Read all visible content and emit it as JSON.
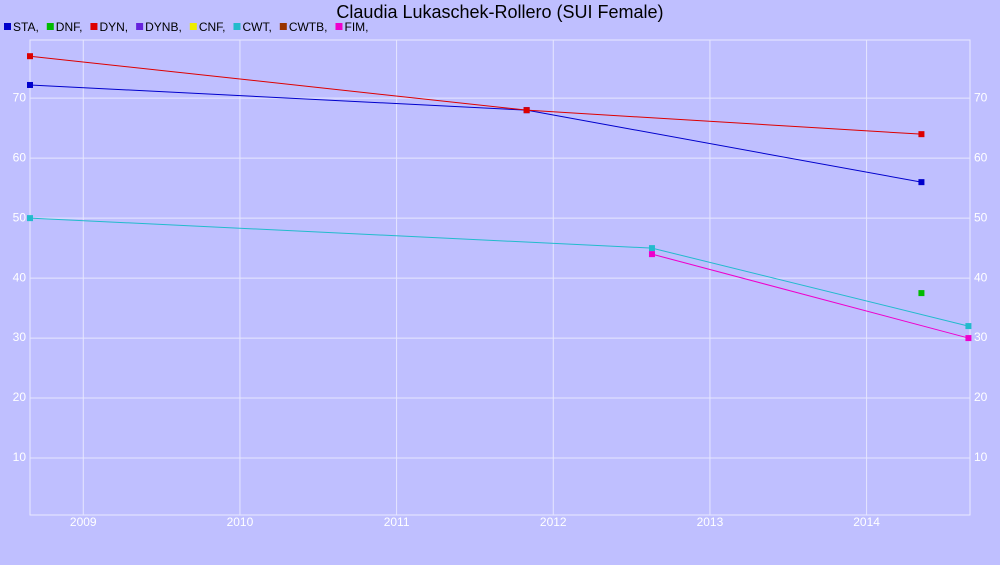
{
  "chart_data": {
    "type": "line",
    "title": "Claudia Lukaschek-Rollero (SUI Female)",
    "xlim": [
      2008.66,
      2014.66
    ],
    "xticks": [
      2009,
      2010,
      2011,
      2012,
      2013,
      2014
    ],
    "ylim": [
      0.5,
      79.7
    ],
    "yticks": [
      10,
      20,
      30,
      40,
      50,
      60,
      70
    ],
    "grid": true,
    "series": [
      {
        "name": "STA,",
        "color": "#0000cc",
        "x": [
          2008.66,
          2011.83,
          2014.35
        ],
        "values": [
          72.2,
          68,
          56
        ]
      },
      {
        "name": "DNF,",
        "color": "#00bb00",
        "x": [
          2014.35
        ],
        "values": [
          37.5
        ]
      },
      {
        "name": "DYN,",
        "color": "#dd0000",
        "x": [
          2008.66,
          2011.83,
          2014.35
        ],
        "values": [
          77,
          68,
          64
        ]
      },
      {
        "name": "DYNB,",
        "color": "#6622dd",
        "x": [],
        "values": []
      },
      {
        "name": "CNF,",
        "color": "#eeee00",
        "x": [],
        "values": []
      },
      {
        "name": "CWT,",
        "color": "#22bbcc",
        "x": [
          2008.66,
          2012.63,
          2014.65
        ],
        "values": [
          50,
          45,
          32
        ]
      },
      {
        "name": "CWTB,",
        "color": "#993300",
        "x": [],
        "values": []
      },
      {
        "name": "FIM,",
        "color": "#ee00cc",
        "x": [
          2012.63,
          2014.65
        ],
        "values": [
          44,
          30
        ]
      }
    ]
  }
}
